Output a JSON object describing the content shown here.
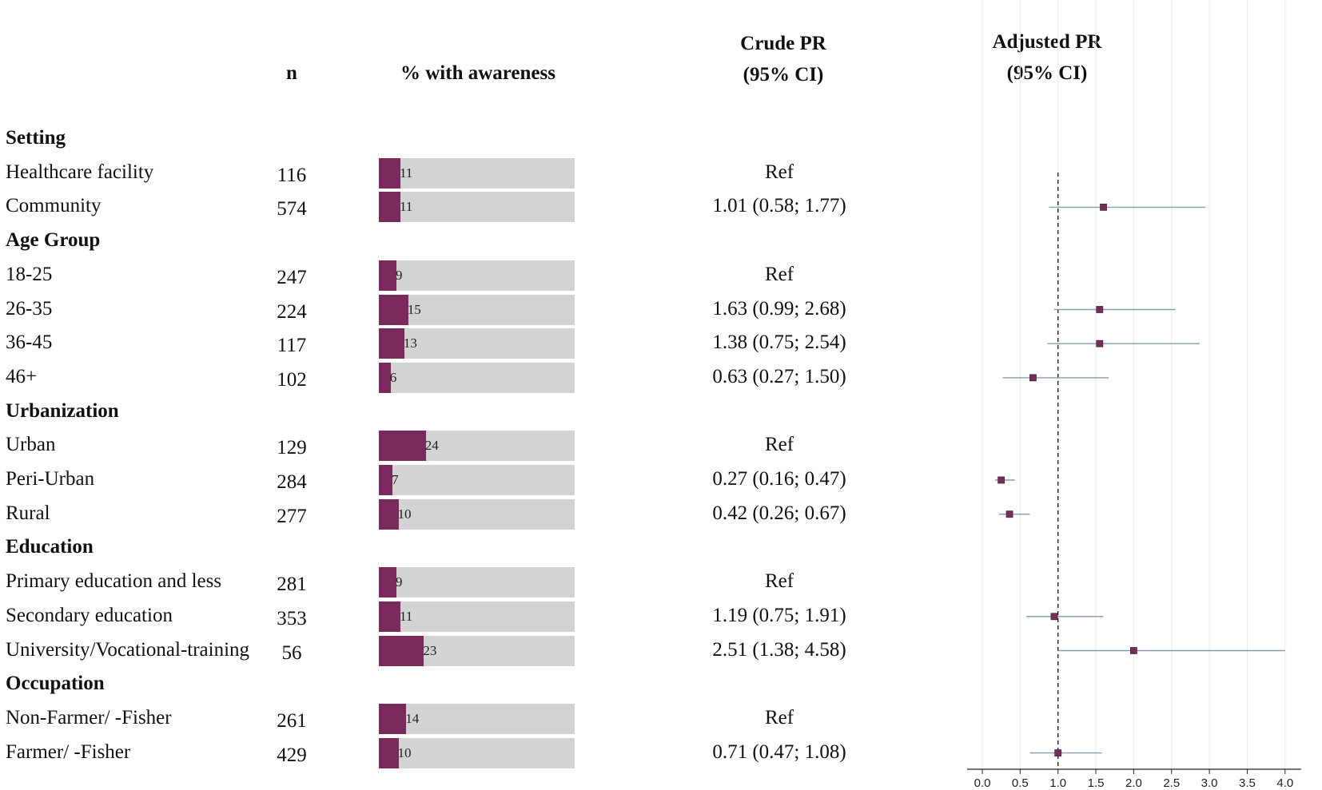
{
  "headers": {
    "n": "n",
    "pct": "% with awareness",
    "crude_line1": "Crude PR",
    "crude_line2": "(95% CI)",
    "adjusted_line1": "Adjusted PR",
    "adjusted_line2": "(95% CI)"
  },
  "rows": [
    {
      "type": "section",
      "label": "Setting"
    },
    {
      "type": "item",
      "label": "Healthcare facility",
      "n": "116",
      "pct": 11,
      "pct_label": "11",
      "crude": "Ref"
    },
    {
      "type": "item",
      "label": "Community",
      "n": "574",
      "pct": 11,
      "pct_label": "11",
      "crude": "1.01 (0.58; 1.77)"
    },
    {
      "type": "section",
      "label": "Age Group"
    },
    {
      "type": "item",
      "label": "18-25",
      "n": "247",
      "pct": 9,
      "pct_label": "9",
      "crude": "Ref"
    },
    {
      "type": "item",
      "label": "26-35",
      "n": "224",
      "pct": 15,
      "pct_label": "15",
      "crude": "1.63 (0.99; 2.68)"
    },
    {
      "type": "item",
      "label": "36-45",
      "n": "117",
      "pct": 13,
      "pct_label": "13",
      "crude": "1.38 (0.75; 2.54)"
    },
    {
      "type": "item",
      "label": "46+",
      "n": "102",
      "pct": 6,
      "pct_label": "6",
      "crude": "0.63 (0.27; 1.50)"
    },
    {
      "type": "section",
      "label": "Urbanization"
    },
    {
      "type": "item",
      "label": "Urban",
      "n": "129",
      "pct": 24,
      "pct_label": "24",
      "crude": "Ref"
    },
    {
      "type": "item",
      "label": "Peri-Urban",
      "n": "284",
      "pct": 7,
      "pct_label": "7",
      "crude": "0.27 (0.16; 0.47)"
    },
    {
      "type": "item",
      "label": "Rural",
      "n": "277",
      "pct": 10,
      "pct_label": "10",
      "crude": "0.42 (0.26; 0.67)"
    },
    {
      "type": "section",
      "label": "Education"
    },
    {
      "type": "item",
      "label": "Primary education and less",
      "n": "281",
      "pct": 9,
      "pct_label": "9",
      "crude": "Ref"
    },
    {
      "type": "item",
      "label": "Secondary education",
      "n": "353",
      "pct": 11,
      "pct_label": "11",
      "crude": "1.19 (0.75; 1.91)"
    },
    {
      "type": "item",
      "label": "University/Vocational-training",
      "n": "56",
      "pct": 23,
      "pct_label": "23",
      "crude": "2.51 (1.38; 4.58)"
    },
    {
      "type": "section",
      "label": "Occupation"
    },
    {
      "type": "item",
      "label": "Non-Farmer/  -Fisher",
      "n": "261",
      "pct": 14,
      "pct_label": "14",
      "crude": "Ref"
    },
    {
      "type": "item",
      "label": "Farmer/ -Fisher",
      "n": "429",
      "pct": 10,
      "pct_label": "10",
      "crude": "0.71 (0.47; 1.08)"
    }
  ],
  "chart_data": [
    {
      "type": "bar",
      "title": "% with awareness",
      "categories": [
        "Healthcare facility",
        "Community",
        "18-25",
        "26-35",
        "36-45",
        "46+",
        "Urban",
        "Peri-Urban",
        "Rural",
        "Primary education and less",
        "Secondary education",
        "University/Vocational-training",
        "Non-Farmer/  -Fisher",
        "Farmer/ -Fisher"
      ],
      "values": [
        11,
        11,
        9,
        15,
        13,
        6,
        24,
        7,
        10,
        9,
        11,
        23,
        14,
        10
      ],
      "ylim": [
        0,
        100
      ]
    },
    {
      "type": "scatter",
      "title": "Adjusted PR (95% CI)",
      "xlim": [
        0,
        4
      ],
      "x_ticks": [
        "0.0",
        "0.5",
        "1.0",
        "1.5",
        "2.0",
        "2.5",
        "3.0",
        "3.5",
        "4.0"
      ],
      "reference_line": 1.0,
      "points": [
        {
          "label": "Community",
          "est": 1.6,
          "lo": 0.88,
          "hi": 2.95
        },
        {
          "label": "26-35",
          "est": 1.55,
          "lo": 0.95,
          "hi": 2.55
        },
        {
          "label": "36-45",
          "est": 1.55,
          "lo": 0.86,
          "hi": 2.87
        },
        {
          "label": "46+",
          "est": 0.67,
          "lo": 0.27,
          "hi": 1.67
        },
        {
          "label": "Peri-Urban",
          "est": 0.25,
          "lo": 0.17,
          "hi": 0.43
        },
        {
          "label": "Rural",
          "est": 0.36,
          "lo": 0.22,
          "hi": 0.63
        },
        {
          "label": "Secondary education",
          "est": 0.95,
          "lo": 0.58,
          "hi": 1.6
        },
        {
          "label": "University/Vocational-training",
          "est": 2.0,
          "lo": 1.0,
          "hi": 4.0
        },
        {
          "label": "Farmer/ -Fisher",
          "est": 1.0,
          "lo": 0.63,
          "hi": 1.58
        }
      ]
    }
  ],
  "colors": {
    "bar_fill": "#7b2a5e",
    "bar_bg": "#d3d3d3",
    "ci_line": "#8a9aa8",
    "point": "#7b2a5e"
  }
}
